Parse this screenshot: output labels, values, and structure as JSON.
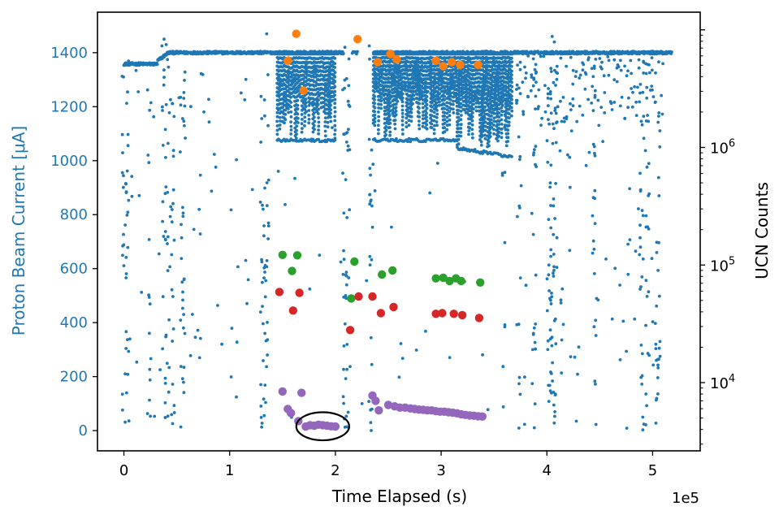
{
  "chart_data": {
    "type": "scatter",
    "title": "",
    "xlabel": "Time Elapsed (s)",
    "ylabel_left": "Proton Beam Current [$\\mu$A]",
    "ylabel_right": "UCN Counts",
    "x_offset_label": "1e5",
    "x_multiplier": 100000,
    "xlim": [
      -0.25,
      5.45
    ],
    "ylim_left": [
      -75,
      1550
    ],
    "ylim_right_log10": [
      3.42,
      7.15
    ],
    "x_ticks": [
      0,
      1,
      2,
      3,
      4,
      5
    ],
    "x_tick_labels": [
      "0",
      "1",
      "2",
      "3",
      "4",
      "5"
    ],
    "y_left_ticks": [
      0,
      200,
      400,
      600,
      800,
      1000,
      1200,
      1400
    ],
    "y_left_tick_labels": [
      "0",
      "200",
      "400",
      "600",
      "800",
      "1000",
      "1200",
      "1400"
    ],
    "y_right_ticks_log10": [
      4,
      5,
      6
    ],
    "y_right_tick_labels": [
      "10^4",
      "10^5",
      "10^6"
    ],
    "grid": false,
    "colors": {
      "beam": "#1f77b4",
      "orange": "#ff7f0e",
      "green": "#2ca02c",
      "red": "#d62728",
      "purple": "#9467bd",
      "axis": "#000000",
      "left_axis_label": "#1f77b4",
      "right_axis_label": "#000000",
      "highlight_ellipse": "#000000"
    },
    "annotations": [
      {
        "type": "ellipse",
        "x_center": 1.88,
        "y_center": 16,
        "x_radius": 0.25,
        "y_radius": 52
      }
    ],
    "series": [
      {
        "key": "orange",
        "axis": "left",
        "points": [
          [
            1.63,
            1470
          ],
          [
            2.21,
            1450
          ],
          [
            1.55,
            1370
          ],
          [
            1.7,
            1260
          ],
          [
            2.4,
            1365
          ],
          [
            2.52,
            1395
          ],
          [
            2.58,
            1375
          ],
          [
            2.95,
            1370
          ],
          [
            3.02,
            1350
          ],
          [
            3.1,
            1365
          ],
          [
            3.18,
            1355
          ],
          [
            3.35,
            1355
          ]
        ]
      },
      {
        "key": "green",
        "axis": "right",
        "points": [
          [
            1.5,
            122000
          ],
          [
            1.64,
            121000
          ],
          [
            1.59,
            89000
          ],
          [
            2.18,
            107000
          ],
          [
            2.15,
            52000
          ],
          [
            2.44,
            83000
          ],
          [
            2.54,
            90000
          ],
          [
            2.95,
            77000
          ],
          [
            3.02,
            78000
          ],
          [
            3.08,
            73000
          ],
          [
            3.14,
            77000
          ],
          [
            3.19,
            73000
          ],
          [
            3.37,
            71000
          ]
        ]
      },
      {
        "key": "red",
        "axis": "right",
        "points": [
          [
            1.47,
            59000
          ],
          [
            1.66,
            58000
          ],
          [
            1.6,
            41000
          ],
          [
            2.14,
            28000
          ],
          [
            2.22,
            54000
          ],
          [
            2.35,
            54000
          ],
          [
            2.43,
            39000
          ],
          [
            2.55,
            44000
          ],
          [
            2.95,
            38500
          ],
          [
            3.01,
            39000
          ],
          [
            3.12,
            38500
          ],
          [
            3.2,
            37500
          ],
          [
            3.36,
            35500
          ]
        ]
      },
      {
        "key": "purple",
        "axis": "left",
        "points": [
          [
            1.5,
            145
          ],
          [
            1.68,
            140
          ],
          [
            1.55,
            80
          ],
          [
            1.58,
            65
          ],
          [
            1.65,
            35
          ],
          [
            1.72,
            15
          ],
          [
            1.76,
            20
          ],
          [
            1.8,
            18
          ],
          [
            1.84,
            22
          ],
          [
            1.88,
            20
          ],
          [
            1.92,
            18
          ],
          [
            1.96,
            16
          ],
          [
            2.0,
            15
          ],
          [
            2.35,
            130
          ],
          [
            2.38,
            110
          ],
          [
            2.41,
            75
          ],
          [
            2.5,
            95
          ],
          [
            2.56,
            90
          ],
          [
            2.61,
            85
          ],
          [
            2.66,
            85
          ],
          [
            2.71,
            82
          ],
          [
            2.75,
            80
          ],
          [
            2.79,
            78
          ],
          [
            2.83,
            77
          ],
          [
            2.87,
            75
          ],
          [
            2.91,
            75
          ],
          [
            2.95,
            72
          ],
          [
            2.99,
            70
          ],
          [
            3.03,
            70
          ],
          [
            3.07,
            68
          ],
          [
            3.11,
            66
          ],
          [
            3.15,
            64
          ],
          [
            3.19,
            60
          ],
          [
            3.23,
            58
          ],
          [
            3.27,
            56
          ],
          [
            3.31,
            55
          ],
          [
            3.35,
            53
          ],
          [
            3.39,
            52
          ]
        ]
      }
    ]
  }
}
